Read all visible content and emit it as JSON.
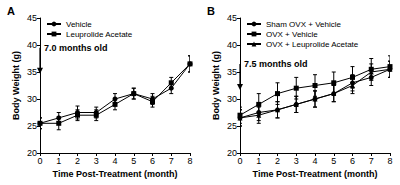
{
  "chart_data": [
    {
      "type": "line",
      "title": "A",
      "x_label": "Time Post-Treatment (month)",
      "y_label": "Body Weight (g)",
      "x": [
        0,
        1,
        2,
        3,
        4,
        5,
        6,
        7,
        8
      ],
      "series": [
        {
          "name": "Vehicle",
          "color": "#000000",
          "marker": "circle",
          "values": [
            25.5,
            26.5,
            27.5,
            27.5,
            30,
            31,
            30,
            32,
            36.5
          ],
          "errors": [
            1,
            1,
            1.2,
            1,
            1,
            1,
            1,
            1,
            1.5
          ]
        },
        {
          "name": "Leuprolide Acetate",
          "color": "#000000",
          "marker": "square",
          "values": [
            25.5,
            25.5,
            27,
            27,
            29,
            31,
            29.5,
            33,
            36.5
          ],
          "errors": [
            1,
            1.2,
            1,
            1,
            1,
            1,
            1,
            1,
            1.5
          ]
        }
      ],
      "annotations": [
        {
          "text": "7.0 months old",
          "x": 0,
          "y": 39.5
        }
      ],
      "xlim": [
        0,
        8
      ],
      "xticks": [
        0,
        1,
        2,
        3,
        4,
        5,
        6,
        7,
        8
      ],
      "ylim": [
        20,
        45
      ],
      "yticks": [
        20,
        25,
        30,
        35,
        40,
        45
      ],
      "grid": false,
      "legend": "upper left"
    },
    {
      "type": "line",
      "title": "B",
      "x_label": "Time Post-Treatment (month)",
      "y_label": "Body Weight (g)",
      "x": [
        0,
        1,
        2,
        3,
        4,
        5,
        6,
        7,
        8
      ],
      "series": [
        {
          "name": "Sham OVX + Vehicle",
          "color": "#000000",
          "marker": "circle",
          "values": [
            26.5,
            27.5,
            28,
            29,
            30,
            31,
            33,
            34,
            35.5
          ],
          "errors": [
            1.5,
            1.5,
            1.5,
            1.5,
            1.5,
            1.5,
            1.5,
            1.5,
            1.5
          ]
        },
        {
          "name": "OVX + Vehicle",
          "color": "#000000",
          "marker": "square",
          "values": [
            27,
            29,
            31,
            32,
            32.5,
            33,
            34,
            35.5,
            36
          ],
          "errors": [
            1.5,
            2,
            2,
            2,
            2,
            2,
            2,
            2,
            2
          ]
        },
        {
          "name": "OVX + Leuprolide Acetate",
          "color": "#000000",
          "marker": "triangle",
          "values": [
            26.5,
            27,
            28,
            29,
            30,
            31,
            32.5,
            35,
            35.5
          ],
          "errors": [
            1.5,
            1.5,
            1.5,
            1.5,
            1.5,
            1.5,
            1.5,
            1.5,
            1.5
          ]
        }
      ],
      "annotations": [
        {
          "text": "7.5 months old",
          "x": 0,
          "y": 36.5
        }
      ],
      "xlim": [
        0,
        8
      ],
      "xticks": [
        0,
        1,
        2,
        3,
        4,
        5,
        6,
        7,
        8
      ],
      "ylim": [
        20,
        45
      ],
      "yticks": [
        20,
        25,
        30,
        35,
        40,
        45
      ],
      "grid": false,
      "legend": "upper left"
    }
  ]
}
